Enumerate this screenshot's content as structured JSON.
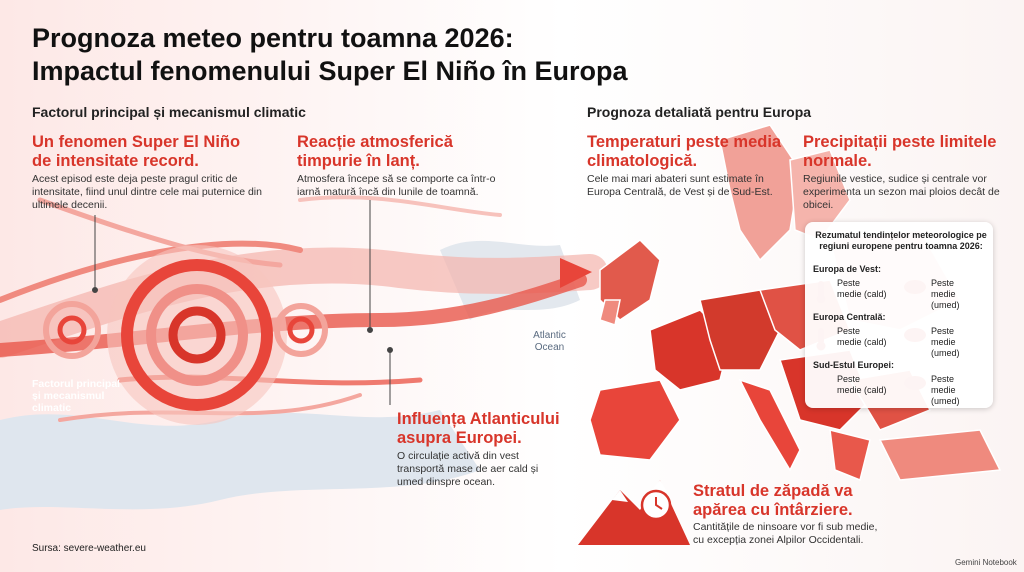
{
  "header": {
    "title_lines": [
      "Prognoza meteo pentru toamna 2026:",
      "Impactul fenomenului Super El Niño în Europa"
    ]
  },
  "left": {
    "heading": "Factorul principal și mecanismul climatic",
    "items": [
      {
        "title": "Un fenomen Super El Niño de intensitate record.",
        "text": "Acest episod este deja peste pragul critic de intensitate, fiind unul dintre cele mai puternice din ultimele decenii."
      },
      {
        "title": "Reacție atmosferică timpurie în lanț.",
        "text": "Atmosfera începe să se comporte ca într-o iarnă matură încă din lunile de toamnă."
      },
      {
        "title": "Influența Atlanticului asupra Europei.",
        "text": "O circulație activă din vest transportă mase de aer cald și umed dinspre ocean."
      }
    ],
    "swirl_label": "Factorul principal și mecanismul climatic",
    "ocean_label": "Atlantic Ocean"
  },
  "right": {
    "heading": "Prognoza detaliată pentru Europa",
    "items": [
      {
        "title": "Temperaturi peste media climatologică.",
        "text": "Cele mai mari abateri sunt estimate în Europa Centrală, de Vest și de Sud-Est."
      },
      {
        "title": "Precipitații peste limitele normale.",
        "text": "Regiunile vestice, sudice și centrale vor experimenta un sezon mai ploios decât de obicei."
      },
      {
        "title": "Stratul de zăpadă va apărea cu întârziere.",
        "text": "Cantitățile de ninsoare vor fi sub medie, cu excepția zonei Alpilor Occidentali."
      }
    ],
    "summary": {
      "title": "Rezumatul tendințelor meteorologice pe regiuni europene pentru toamna 2026:",
      "regions": [
        {
          "name": "Europa de Vest:",
          "temp": "Peste medie (cald)",
          "precip": "Peste medie (umed)"
        },
        {
          "name": "Europa Centrală:",
          "temp": "Peste medie (cald)",
          "precip": "Peste medie (umed)"
        },
        {
          "name": "Sud-Estul Europei:",
          "temp": "Peste medie (cald)",
          "precip": "Peste medie (umed)"
        }
      ]
    }
  },
  "footer": {
    "source": "Sursa: severe-weather.eu",
    "watermark": "Gemini Notebook"
  }
}
